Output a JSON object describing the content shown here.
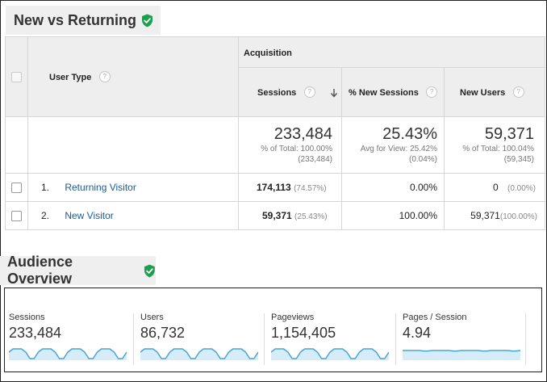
{
  "report": {
    "title": "New vs Returning",
    "group_header": "Acquisition",
    "dimension_header": "User Type",
    "columns": [
      {
        "label": "Sessions",
        "sorted": true
      },
      {
        "label": "% New Sessions"
      },
      {
        "label": "New Users"
      }
    ],
    "totals": {
      "sessions": {
        "value": "233,484",
        "line1": "% of Total: 100.00%",
        "line2": "(233,484)"
      },
      "new_sessions": {
        "value": "25.43%",
        "line1": "Avg for View: 25.42%",
        "line2": "(0.04%)"
      },
      "new_users": {
        "value": "59,371",
        "line1": "% of Total: 100.04%",
        "line2": "(59,345)"
      }
    },
    "rows": [
      {
        "index": "1.",
        "label": "Returning Visitor",
        "sessions": "174,113",
        "sessions_pct": "(74.57%)",
        "new_sessions": "0.00%",
        "new_users": "0",
        "new_users_pct": "(0.00%)"
      },
      {
        "index": "2.",
        "label": "New Visitor",
        "sessions": "59,371",
        "sessions_pct": "(25.43%)",
        "new_sessions": "100.00%",
        "new_users": "59,371",
        "new_users_pct": "(100.00%)"
      }
    ]
  },
  "overview": {
    "title": "Audience Overview",
    "metrics": [
      {
        "label": "Sessions",
        "value": "233,484",
        "trend": "weekly-dips"
      },
      {
        "label": "Users",
        "value": "86,732",
        "trend": "weekly-dips"
      },
      {
        "label": "Pageviews",
        "value": "1,154,405",
        "trend": "weekly-dips"
      },
      {
        "label": "Pages / Session",
        "value": "4.94",
        "trend": "flat"
      }
    ]
  },
  "colors": {
    "shield": "#1e9e4f",
    "link": "#1a5a96",
    "sparkline": "#4aa3d6",
    "sparkline_fill": "#d6ecf8"
  },
  "icons": {
    "verified": "shield-check-icon",
    "help": "question-mark-icon",
    "sort": "arrow-down-icon"
  }
}
